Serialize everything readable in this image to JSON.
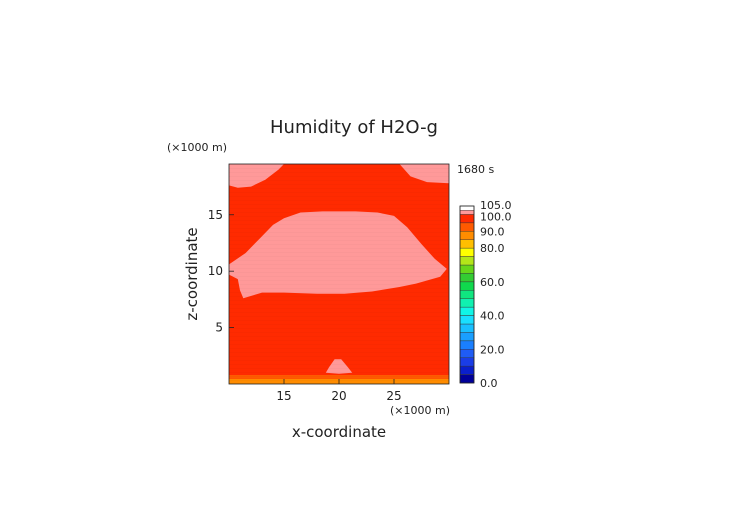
{
  "chart_data": {
    "type": "heatmap",
    "title": "Humidity of H2O-g",
    "xlabel": "x-coordinate",
    "ylabel": "z-coordinate",
    "x_unit": "(×1000 m)",
    "y_unit": "(×1000 m)",
    "time_label": "1680 s",
    "xlim": [
      10,
      30
    ],
    "ylim": [
      0,
      19.5
    ],
    "x_ticks": [
      "15",
      "20",
      "25"
    ],
    "y_ticks": [
      "5",
      "10",
      "15"
    ],
    "x_tick_values": [
      15,
      20,
      25
    ],
    "y_tick_values": [
      5,
      10,
      15
    ],
    "colorbar": {
      "labels": [
        "105.0",
        "100.0",
        "90.0",
        "80.0",
        "60.0",
        "40.0",
        "20.0",
        "0.0"
      ],
      "label_values": [
        105,
        100,
        90,
        80,
        60,
        40,
        20,
        0
      ],
      "bands": [
        {
          "from": 0,
          "to": 5,
          "color": "#000099"
        },
        {
          "from": 5,
          "to": 10,
          "color": "#0a1fcc"
        },
        {
          "from": 10,
          "to": 15,
          "color": "#1a3de6"
        },
        {
          "from": 15,
          "to": 20,
          "color": "#1f5cf5"
        },
        {
          "from": 20,
          "to": 25,
          "color": "#1a7fff"
        },
        {
          "from": 25,
          "to": 30,
          "color": "#1a9fff"
        },
        {
          "from": 30,
          "to": 35,
          "color": "#19bfff"
        },
        {
          "from": 35,
          "to": 40,
          "color": "#19dfff"
        },
        {
          "from": 40,
          "to": 45,
          "color": "#10f5e6"
        },
        {
          "from": 45,
          "to": 50,
          "color": "#10f0b0"
        },
        {
          "from": 50,
          "to": 55,
          "color": "#10e680"
        },
        {
          "from": 55,
          "to": 60,
          "color": "#10d94d"
        },
        {
          "from": 60,
          "to": 65,
          "color": "#33cc33"
        },
        {
          "from": 65,
          "to": 70,
          "color": "#66d61a"
        },
        {
          "from": 70,
          "to": 75,
          "color": "#b3e619"
        },
        {
          "from": 75,
          "to": 80,
          "color": "#ffff00"
        },
        {
          "from": 80,
          "to": 85,
          "color": "#ffbf00"
        },
        {
          "from": 85,
          "to": 90,
          "color": "#ff8c00"
        },
        {
          "from": 90,
          "to": 95,
          "color": "#ff5a00"
        },
        {
          "from": 95,
          "to": 100,
          "color": "#ff2a00"
        },
        {
          "from": 100,
          "to": 102.5,
          "color": "#ff9999"
        },
        {
          "from": 102.5,
          "to": 105,
          "color": "#ffffff"
        }
      ]
    },
    "background_value": "95-100",
    "regions": [
      {
        "name": "upper-left-cap",
        "value": "100-102.5",
        "polygon": [
          [
            10.0,
            19.5
          ],
          [
            10.0,
            17.6
          ],
          [
            10.8,
            17.4
          ],
          [
            12.0,
            17.5
          ],
          [
            13.3,
            18.1
          ],
          [
            14.5,
            19.0
          ],
          [
            15.0,
            19.5
          ]
        ]
      },
      {
        "name": "upper-right-cap",
        "value": "100-102.5",
        "polygon": [
          [
            25.5,
            19.5
          ],
          [
            26.5,
            18.4
          ],
          [
            28.0,
            17.9
          ],
          [
            30.0,
            17.8
          ],
          [
            30.0,
            19.5
          ]
        ]
      },
      {
        "name": "central-saturated-band",
        "value": "100-102.5",
        "polygon": [
          [
            10.0,
            10.6
          ],
          [
            11.5,
            11.6
          ],
          [
            12.8,
            12.9
          ],
          [
            14.0,
            14.1
          ],
          [
            15.0,
            14.7
          ],
          [
            16.5,
            15.2
          ],
          [
            18.5,
            15.3
          ],
          [
            21.5,
            15.3
          ],
          [
            23.5,
            15.2
          ],
          [
            25.0,
            14.9
          ],
          [
            26.2,
            13.9
          ],
          [
            27.5,
            12.4
          ],
          [
            28.7,
            11.1
          ],
          [
            29.8,
            10.2
          ],
          [
            29.2,
            9.5
          ],
          [
            27.0,
            8.9
          ],
          [
            25.5,
            8.6
          ],
          [
            23.0,
            8.2
          ],
          [
            20.5,
            8.0
          ],
          [
            18.0,
            8.0
          ],
          [
            15.0,
            8.1
          ],
          [
            13.0,
            8.1
          ],
          [
            11.3,
            7.6
          ],
          [
            11.0,
            8.3
          ],
          [
            10.8,
            9.3
          ],
          [
            10.0,
            9.7
          ]
        ]
      },
      {
        "name": "low-pink-patch",
        "value": "100-102.5",
        "polygon": [
          [
            18.8,
            1.0
          ],
          [
            19.1,
            1.5
          ],
          [
            19.6,
            2.2
          ],
          [
            20.2,
            2.2
          ],
          [
            20.8,
            1.5
          ],
          [
            21.2,
            1.0
          ],
          [
            20.0,
            0.9
          ]
        ]
      },
      {
        "name": "surface-band-orange",
        "value": "85-90",
        "polygon": [
          [
            10.0,
            0.0
          ],
          [
            30.0,
            0.0
          ],
          [
            30.0,
            0.45
          ],
          [
            10.0,
            0.45
          ]
        ]
      },
      {
        "name": "surface-band-orange-red",
        "value": "90-95",
        "polygon": [
          [
            10.0,
            0.45
          ],
          [
            30.0,
            0.45
          ],
          [
            30.0,
            0.8
          ],
          [
            10.0,
            0.8
          ]
        ]
      }
    ]
  }
}
